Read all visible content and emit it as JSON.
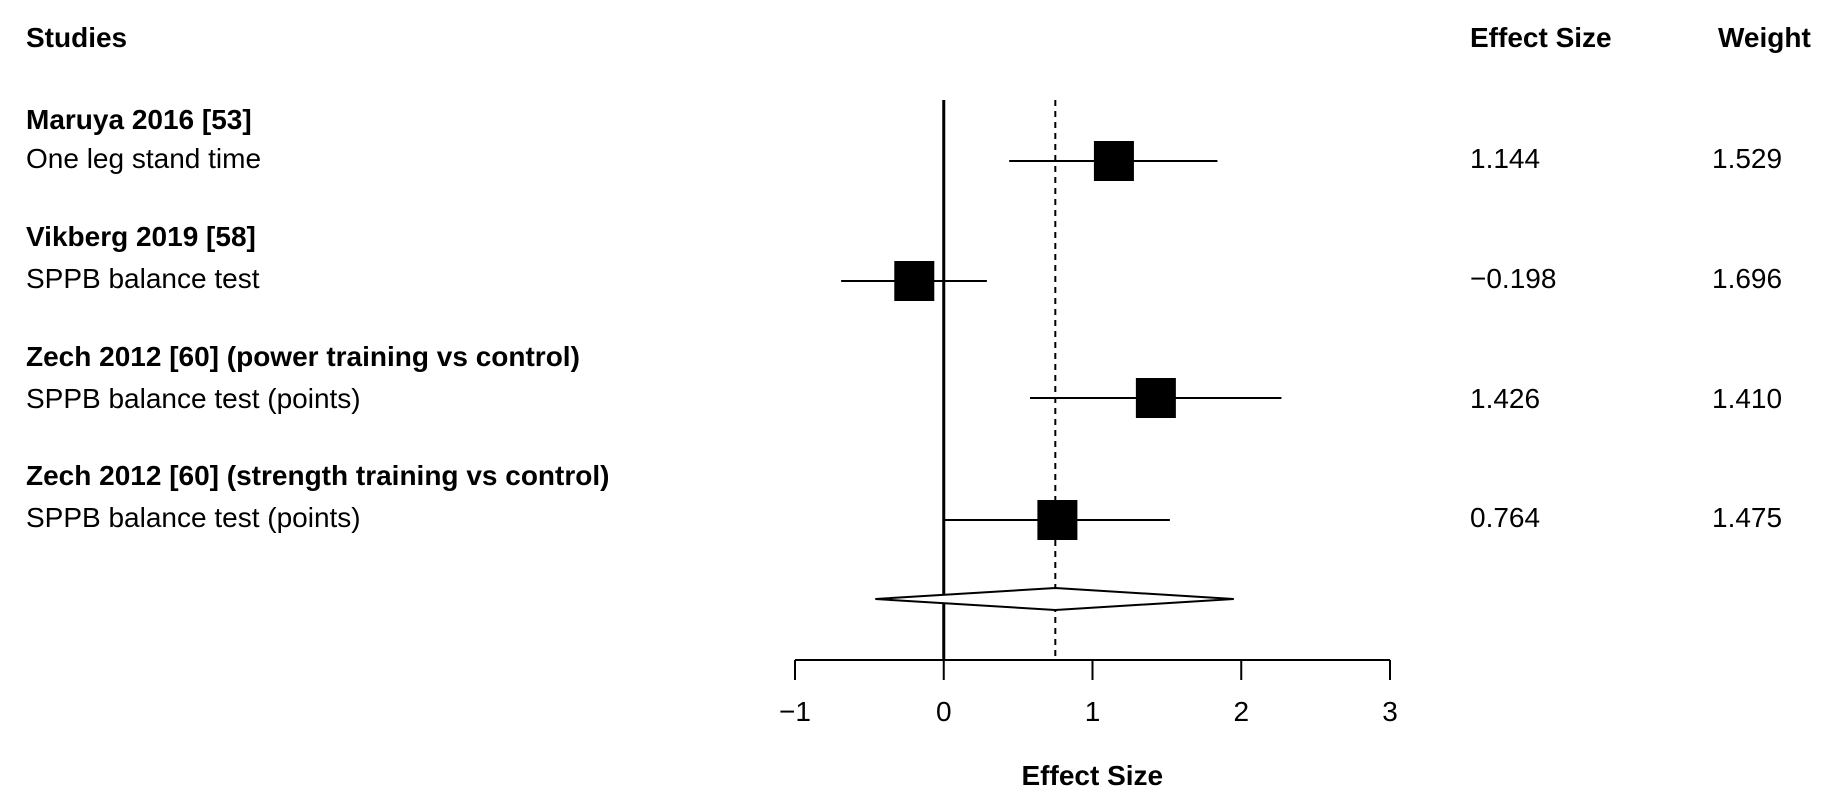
{
  "headers": {
    "studies": "Studies",
    "effect_size": "Effect Size",
    "weight": "Weight"
  },
  "studies": [
    {
      "name": "Maruya 2016 [53]",
      "outcome": "One leg stand time",
      "effect": 1.144,
      "ci": [
        0.44,
        1.84
      ],
      "effect_label": "1.144",
      "weight_label": "1.529"
    },
    {
      "name": "Vikberg 2019 [58]",
      "outcome": "SPPB balance test",
      "effect": -0.198,
      "ci": [
        -0.69,
        0.29
      ],
      "effect_label": "−0.198",
      "weight_label": "1.696"
    },
    {
      "name": "Zech 2012 [60] (power training vs control)",
      "outcome": "SPPB balance test (points)",
      "effect": 1.426,
      "ci": [
        0.58,
        2.27
      ],
      "effect_label": "1.426",
      "weight_label": "1.410"
    },
    {
      "name": "Zech 2012 [60] (strength training vs control)",
      "outcome": "SPPB balance test (points)",
      "effect": 0.764,
      "ci": [
        0.0,
        1.52
      ],
      "effect_label": "0.764",
      "weight_label": "1.475"
    }
  ],
  "chart_data": {
    "type": "forest",
    "xlabel": "Effect Size",
    "xlim": [
      -1,
      3
    ],
    "ticks": [
      -1,
      0,
      1,
      2,
      3
    ],
    "tick_labels": [
      "−1",
      "0",
      "1",
      "2",
      "3"
    ],
    "pooled": {
      "estimate": 0.75,
      "ci": [
        -0.46,
        1.95
      ]
    },
    "null_line": 0
  }
}
